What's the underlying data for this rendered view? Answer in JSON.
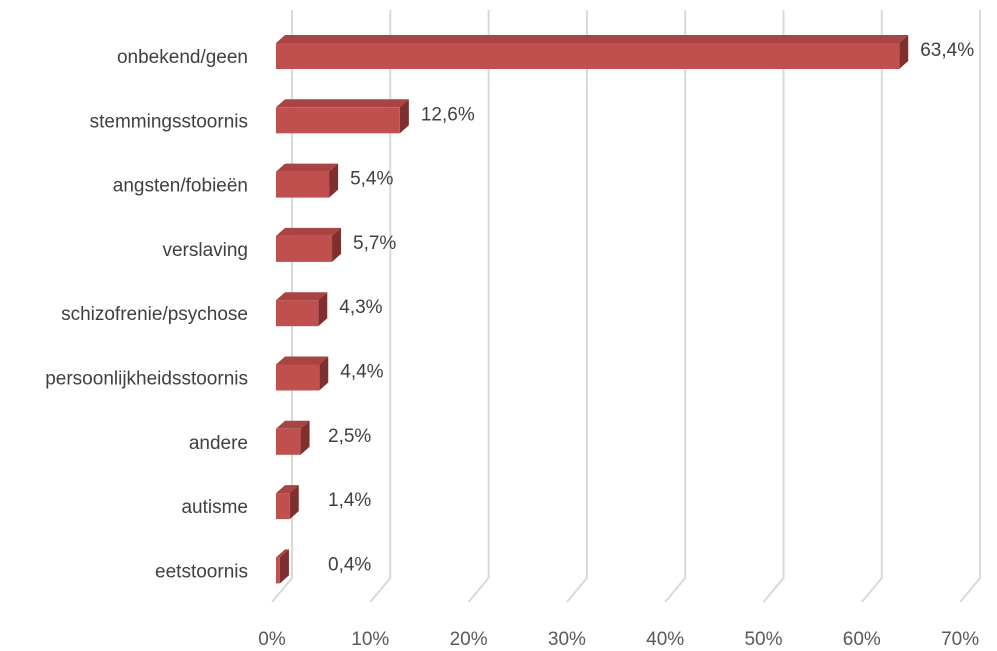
{
  "colors": {
    "bar_front": "#c0504d",
    "bar_top": "#a84543",
    "bar_side": "#7f2f2d",
    "grid": "#d9d9d9",
    "text": "#404040"
  },
  "chart_data": {
    "type": "bar",
    "orientation": "horizontal",
    "style": "3d",
    "categories": [
      "onbekend/geen",
      "stemmingsstoornis",
      "angsten/fobieën",
      "verslaving",
      "schizofrenie/psychose",
      "persoonlijkheidsstoornis",
      "andere",
      "autisme",
      "eetstoornis"
    ],
    "values": [
      63.4,
      12.6,
      5.4,
      5.7,
      4.3,
      4.4,
      2.5,
      1.4,
      0.4
    ],
    "data_labels": [
      "63,4%",
      "12,6%",
      "5,4%",
      "5,7%",
      "4,3%",
      "4,4%",
      "2,5%",
      "1,4%",
      "0,4%"
    ],
    "x_ticks": [
      "0%",
      "10%",
      "20%",
      "30%",
      "40%",
      "50%",
      "60%",
      "70%"
    ],
    "x_tick_values": [
      0,
      10,
      20,
      30,
      40,
      50,
      60,
      70
    ],
    "xlim": [
      0,
      70
    ],
    "grid": true,
    "legend": false
  }
}
